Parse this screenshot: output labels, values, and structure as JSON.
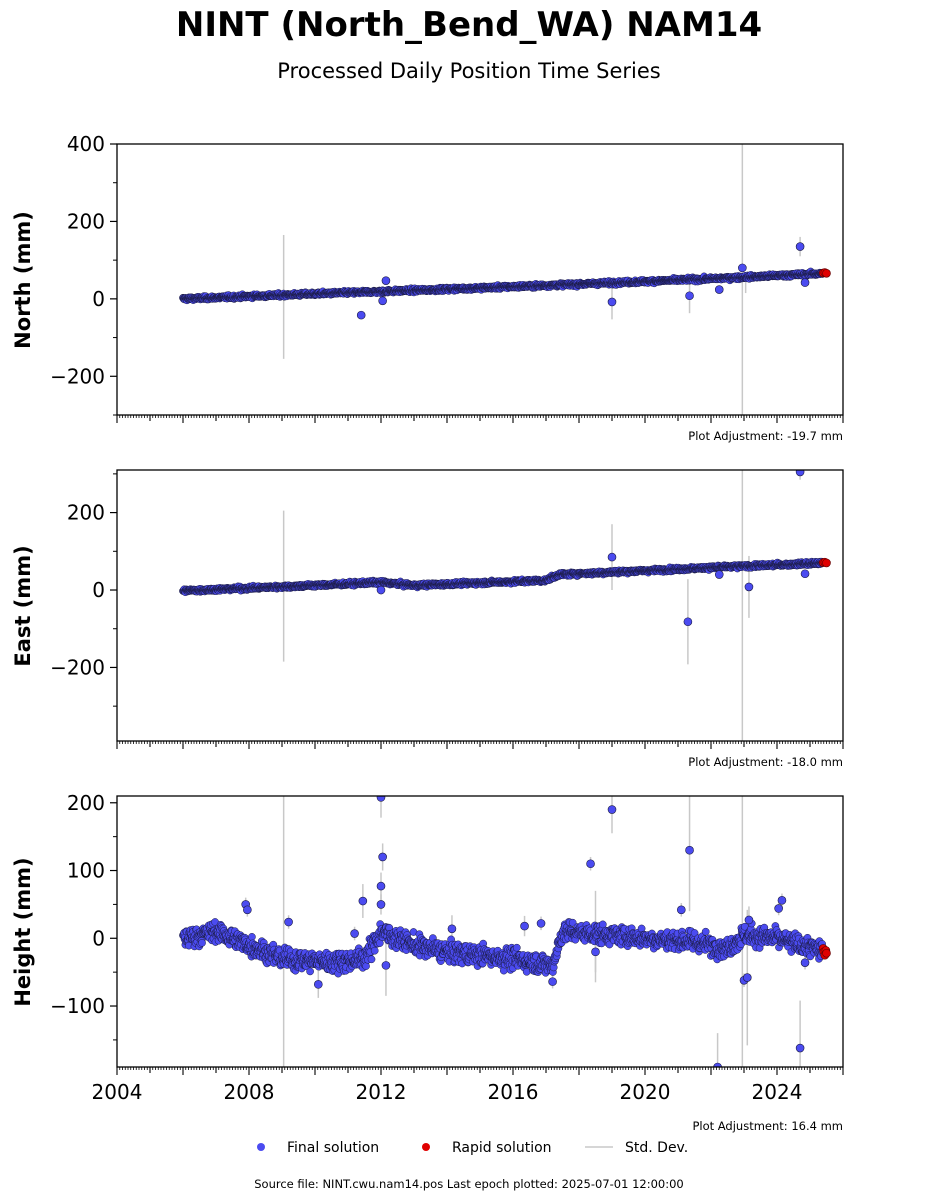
{
  "figure": {
    "title": "NINT (North_Bend_WA) NAM14",
    "subtitle": "Processed Daily Position Time Series",
    "source": "Source file: NINT.cwu.nam14.pos  Last epoch plotted: 2025-07-01 12:00:00"
  },
  "legend": {
    "final": "Final solution",
    "rapid": "Rapid solution",
    "std": "Std. Dev."
  },
  "colors": {
    "final": "#4b4bf0",
    "rapid": "#e00000",
    "std": "#c8c8c8",
    "edge": "#1a1a40"
  },
  "chart_data": [
    {
      "type": "scatter",
      "panel": "north",
      "ylabel": "North (mm)",
      "adjustment": "Plot Adjustment: -19.7 mm",
      "xlim": [
        2004,
        2026
      ],
      "ylim": [
        -300,
        400
      ],
      "yticks": [
        -200,
        0,
        200,
        400
      ],
      "ytick_labels": [
        "−200",
        "0",
        "200",
        "400"
      ],
      "trend": [
        [
          2006.0,
          0
        ],
        [
          2010.0,
          13
        ],
        [
          2014.0,
          25
        ],
        [
          2018.0,
          38
        ],
        [
          2022.0,
          52
        ],
        [
          2025.5,
          66
        ]
      ],
      "scatter_sd": 3,
      "outliers": [
        {
          "x": 2011.4,
          "y": -42,
          "err": 8
        },
        {
          "x": 2012.05,
          "y": -5,
          "err": 10
        },
        {
          "x": 2012.15,
          "y": 47,
          "err": 10
        },
        {
          "x": 2019.0,
          "y": -8,
          "err": 45
        },
        {
          "x": 2021.35,
          "y": 8,
          "err": 45
        },
        {
          "x": 2022.25,
          "y": 24,
          "err": 8
        },
        {
          "x": 2022.95,
          "y": 80,
          "err": 8
        },
        {
          "x": 2024.7,
          "y": 135,
          "err": 25
        },
        {
          "x": 2024.85,
          "y": 42,
          "err": 10
        }
      ],
      "std_bars": [
        {
          "x": 2009.05,
          "y": 5,
          "err": 160
        },
        {
          "x": 2022.95,
          "y": 60,
          "err": 380
        },
        {
          "x": 2023.05,
          "y": 35,
          "err": 20
        }
      ],
      "rapid": [
        {
          "x": 2025.4,
          "y": 67
        },
        {
          "x": 2025.45,
          "y": 68
        },
        {
          "x": 2025.5,
          "y": 66
        }
      ]
    },
    {
      "type": "scatter",
      "panel": "east",
      "ylabel": "East (mm)",
      "adjustment": "Plot Adjustment: -18.0 mm",
      "xlim": [
        2004,
        2026
      ],
      "ylim": [
        -390,
        310
      ],
      "yticks": [
        -200,
        0,
        200
      ],
      "ytick_labels": [
        "−200",
        "0",
        "200"
      ],
      "trend": [
        [
          2006.0,
          -2
        ],
        [
          2010.0,
          12
        ],
        [
          2012.0,
          20
        ],
        [
          2013.0,
          12
        ],
        [
          2017.0,
          25
        ],
        [
          2017.4,
          40
        ],
        [
          2020.0,
          50
        ],
        [
          2022.0,
          58
        ],
        [
          2025.5,
          70
        ]
      ],
      "scatter_sd": 3,
      "outliers": [
        {
          "x": 2012.0,
          "y": 0,
          "err": 8
        },
        {
          "x": 2019.0,
          "y": 85,
          "err": 85
        },
        {
          "x": 2021.3,
          "y": -82,
          "err": 110
        },
        {
          "x": 2022.25,
          "y": 40,
          "err": 8
        },
        {
          "x": 2023.15,
          "y": 8,
          "err": 80
        },
        {
          "x": 2024.7,
          "y": 305,
          "err": 20
        },
        {
          "x": 2024.85,
          "y": 42,
          "err": 10
        }
      ],
      "std_bars": [
        {
          "x": 2009.05,
          "y": 10,
          "err": 195
        },
        {
          "x": 2022.95,
          "y": 0,
          "err": 420
        }
      ],
      "rapid": [
        {
          "x": 2025.4,
          "y": 71
        },
        {
          "x": 2025.45,
          "y": 72
        },
        {
          "x": 2025.5,
          "y": 70
        }
      ]
    },
    {
      "type": "scatter",
      "panel": "height",
      "ylabel": "Height (mm)",
      "adjustment": "Plot Adjustment: 16.4 mm",
      "xlim": [
        2004,
        2026
      ],
      "ylim": [
        -190,
        210
      ],
      "yticks": [
        -100,
        0,
        100,
        200
      ],
      "ytick_labels": [
        "−100",
        "0",
        "100",
        "200"
      ],
      "xticks": [
        2004,
        2008,
        2012,
        2016,
        2020,
        2024
      ],
      "xtick_labels": [
        "2004",
        "2008",
        "2012",
        "2016",
        "2020",
        "2024"
      ],
      "trend": [
        [
          2006.0,
          0
        ],
        [
          2007.0,
          10
        ],
        [
          2008.0,
          -10
        ],
        [
          2009.0,
          -30
        ],
        [
          2010.5,
          -35
        ],
        [
          2011.5,
          -30
        ],
        [
          2012.0,
          10
        ],
        [
          2013.0,
          -10
        ],
        [
          2014.0,
          -20
        ],
        [
          2016.0,
          -30
        ],
        [
          2017.2,
          -40
        ],
        [
          2017.5,
          10
        ],
        [
          2019.0,
          5
        ],
        [
          2020.0,
          0
        ],
        [
          2021.5,
          -5
        ],
        [
          2022.5,
          -15
        ],
        [
          2023.0,
          5
        ],
        [
          2024.0,
          0
        ],
        [
          2025.5,
          -20
        ]
      ],
      "scatter_sd": 10,
      "outliers": [
        {
          "x": 2007.9,
          "y": 50,
          "err": 10
        },
        {
          "x": 2007.95,
          "y": 42,
          "err": 10
        },
        {
          "x": 2009.2,
          "y": 24,
          "err": 10
        },
        {
          "x": 2010.1,
          "y": -68,
          "err": 20
        },
        {
          "x": 2011.2,
          "y": 7,
          "err": 10
        },
        {
          "x": 2011.45,
          "y": 55,
          "err": 25
        },
        {
          "x": 2012.0,
          "y": 208,
          "err": 30
        },
        {
          "x": 2012.05,
          "y": 120,
          "err": 20
        },
        {
          "x": 2012.0,
          "y": 77,
          "err": 20
        },
        {
          "x": 2012.0,
          "y": 50,
          "err": 15
        },
        {
          "x": 2012.15,
          "y": -40,
          "err": 45
        },
        {
          "x": 2014.15,
          "y": 14,
          "err": 20
        },
        {
          "x": 2016.35,
          "y": 18,
          "err": 15
        },
        {
          "x": 2016.85,
          "y": 22,
          "err": 10
        },
        {
          "x": 2017.2,
          "y": -64,
          "err": 10
        },
        {
          "x": 2018.35,
          "y": 110,
          "err": 10
        },
        {
          "x": 2018.5,
          "y": -20,
          "err": 45
        },
        {
          "x": 2019.0,
          "y": 190,
          "err": 35
        },
        {
          "x": 2021.1,
          "y": 42,
          "err": 10
        },
        {
          "x": 2021.35,
          "y": 130,
          "err": 90
        },
        {
          "x": 2022.2,
          "y": -190,
          "err": 50
        },
        {
          "x": 2023.0,
          "y": -62,
          "err": 10
        },
        {
          "x": 2023.1,
          "y": -58,
          "err": 100
        },
        {
          "x": 2023.15,
          "y": 27,
          "err": 20
        },
        {
          "x": 2024.05,
          "y": 44,
          "err": 10
        },
        {
          "x": 2024.15,
          "y": 56,
          "err": 10
        },
        {
          "x": 2024.7,
          "y": -162,
          "err": 70
        },
        {
          "x": 2024.85,
          "y": -36,
          "err": 10
        }
      ],
      "std_bars": [
        {
          "x": 2009.05,
          "y": 0,
          "err": 220
        },
        {
          "x": 2022.95,
          "y": 0,
          "err": 220
        },
        {
          "x": 2018.5,
          "y": 10,
          "err": 60
        }
      ],
      "rapid": [
        {
          "x": 2025.4,
          "y": -15
        },
        {
          "x": 2025.42,
          "y": -20
        },
        {
          "x": 2025.45,
          "y": -25
        },
        {
          "x": 2025.48,
          "y": -18
        },
        {
          "x": 2025.5,
          "y": -22
        }
      ]
    }
  ]
}
